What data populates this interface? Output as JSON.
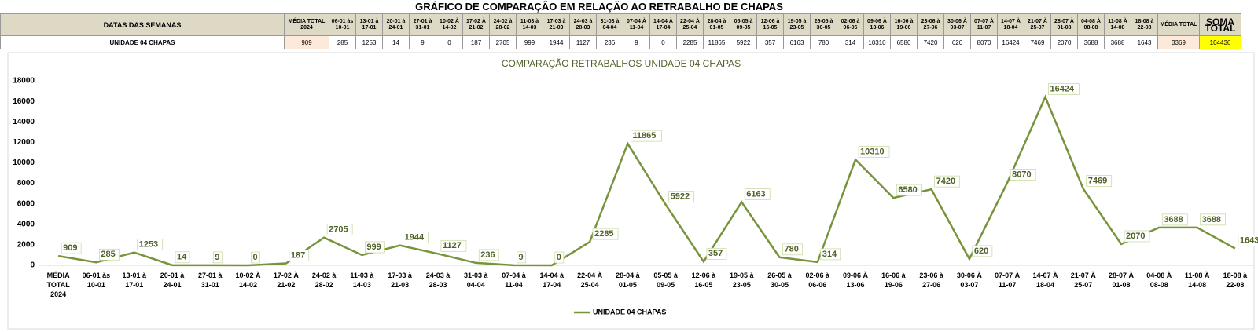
{
  "table": {
    "title": "GRÁFICO DE COMPARAÇÃO EM RELAÇÃO AO RETRABALHO DE CHAPAS",
    "header_label": "DATAS DAS SEMANAS",
    "row_label": "UNIDADE 04 CHAPAS",
    "columns": [
      "MÉDIA TOTAL 2024",
      "06-01 às 10-01",
      "13-01 à 17-01",
      "20-01 à 24-01",
      "27-01 à 31-01",
      "10-02 À 14-02",
      "17-02 À 21-02",
      "24-02 à 28-02",
      "11-03 à 14-03",
      "17-03 à 21-03",
      "24-03 à 28-03",
      "31-03 à 04-04",
      "07-04 À 11-04",
      "14-04 À 17-04",
      "22-04 À 25-04",
      "28-04 à 01-05",
      "05-05 à 09-05",
      "12-06 à 16-05",
      "19-05 à 23-05",
      "26-05 à 30-05",
      "02-06 à 06-06",
      "09-06 À 13-06",
      "16-06 à 19-06",
      "23-06 à 27-06",
      "30-06 À 03-07",
      "07-07 À 11-07",
      "14-07 À 18-04",
      "21-07 À 25-07",
      "28-07 À 01-08",
      "04-08 À 08-08",
      "11-08 À 14-08",
      "18-08 à 22-08",
      "MÉDIA TOTAL",
      "SOMA TOTAL"
    ],
    "values": [
      909,
      285,
      1253,
      14,
      9,
      0,
      187,
      2705,
      999,
      1944,
      1127,
      236,
      9,
      0,
      2285,
      11865,
      5922,
      357,
      6163,
      780,
      314,
      10310,
      6580,
      7420,
      620,
      8070,
      16424,
      7469,
      2070,
      3688,
      3688,
      1643,
      3369,
      104436
    ]
  },
  "chart_data": {
    "type": "line",
    "title": "COMPARAÇÃO RETRABALHOS UNIDADE 04 CHAPAS",
    "categories": [
      "MÉDIA TOTAL 2024",
      "06-01 às 10-01",
      "13-01 à 17-01",
      "20-01 à 24-01",
      "27-01 à 31-01",
      "10-02 À 14-02",
      "17-02 À 21-02",
      "24-02 à 28-02",
      "11-03 à 14-03",
      "17-03 à 21-03",
      "24-03 à 28-03",
      "31-03 à 04-04",
      "07-04 à 11-04",
      "14-04 à 17-04",
      "22-04 À 25-04",
      "28-04 à 01-05",
      "05-05 à 09-05",
      "12-06 à 16-05",
      "19-05 à 23-05",
      "26-05 à 30-05",
      "02-06 à 06-06",
      "09-06 À 13-06",
      "16-06 à 19-06",
      "23-06 à 27-06",
      "30-06 À 03-07",
      "07-07 À 11-07",
      "14-07 À 18-04",
      "21-07 À 25-07",
      "28-07 À 01-08",
      "04-08 À 08-08",
      "11-08 À 14-08",
      "18-08 à 22-08"
    ],
    "series": [
      {
        "name": "UNIDADE 04 CHAPAS",
        "color": "#77933c",
        "values": [
          909,
          285,
          1253,
          14,
          9,
          0,
          187,
          2705,
          999,
          1944,
          1127,
          236,
          9,
          0,
          2285,
          11865,
          5922,
          357,
          6163,
          780,
          314,
          10310,
          6580,
          7420,
          620,
          8070,
          16424,
          7469,
          2070,
          3688,
          3688,
          1643
        ]
      }
    ],
    "ylim": [
      0,
      18000
    ],
    "yticks": [
      0,
      2000,
      4000,
      6000,
      8000,
      10000,
      12000,
      14000,
      16000,
      18000
    ],
    "grid": false,
    "legend": "bottom"
  }
}
